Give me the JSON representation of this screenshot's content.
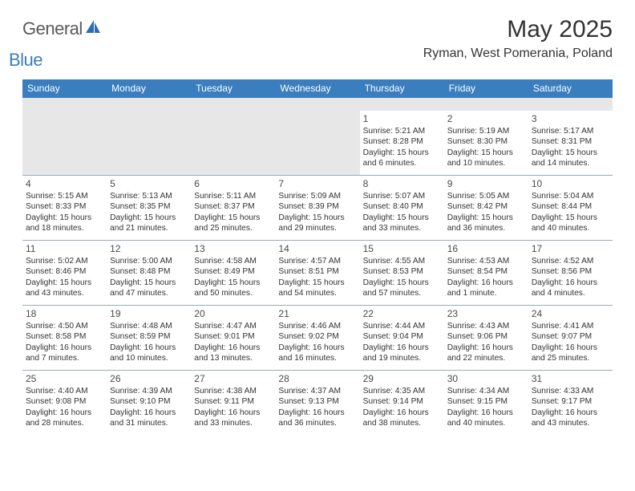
{
  "logo": {
    "text1": "General",
    "text2": "Blue"
  },
  "title": "May 2025",
  "location": "Ryman, West Pomerania, Poland",
  "colors": {
    "header_bg": "#3a7ebf",
    "header_fg": "#ffffff",
    "band_bg": "#e7e7e7",
    "rule": "#9aaac0"
  },
  "dayNames": [
    "Sunday",
    "Monday",
    "Tuesday",
    "Wednesday",
    "Thursday",
    "Friday",
    "Saturday"
  ],
  "weeks": [
    [
      {
        "n": "",
        "sr": "",
        "ss": "",
        "dl1": "",
        "dl2": ""
      },
      {
        "n": "",
        "sr": "",
        "ss": "",
        "dl1": "",
        "dl2": ""
      },
      {
        "n": "",
        "sr": "",
        "ss": "",
        "dl1": "",
        "dl2": ""
      },
      {
        "n": "",
        "sr": "",
        "ss": "",
        "dl1": "",
        "dl2": ""
      },
      {
        "n": "1",
        "sr": "Sunrise: 5:21 AM",
        "ss": "Sunset: 8:28 PM",
        "dl1": "Daylight: 15 hours",
        "dl2": "and 6 minutes."
      },
      {
        "n": "2",
        "sr": "Sunrise: 5:19 AM",
        "ss": "Sunset: 8:30 PM",
        "dl1": "Daylight: 15 hours",
        "dl2": "and 10 minutes."
      },
      {
        "n": "3",
        "sr": "Sunrise: 5:17 AM",
        "ss": "Sunset: 8:31 PM",
        "dl1": "Daylight: 15 hours",
        "dl2": "and 14 minutes."
      }
    ],
    [
      {
        "n": "4",
        "sr": "Sunrise: 5:15 AM",
        "ss": "Sunset: 8:33 PM",
        "dl1": "Daylight: 15 hours",
        "dl2": "and 18 minutes."
      },
      {
        "n": "5",
        "sr": "Sunrise: 5:13 AM",
        "ss": "Sunset: 8:35 PM",
        "dl1": "Daylight: 15 hours",
        "dl2": "and 21 minutes."
      },
      {
        "n": "6",
        "sr": "Sunrise: 5:11 AM",
        "ss": "Sunset: 8:37 PM",
        "dl1": "Daylight: 15 hours",
        "dl2": "and 25 minutes."
      },
      {
        "n": "7",
        "sr": "Sunrise: 5:09 AM",
        "ss": "Sunset: 8:39 PM",
        "dl1": "Daylight: 15 hours",
        "dl2": "and 29 minutes."
      },
      {
        "n": "8",
        "sr": "Sunrise: 5:07 AM",
        "ss": "Sunset: 8:40 PM",
        "dl1": "Daylight: 15 hours",
        "dl2": "and 33 minutes."
      },
      {
        "n": "9",
        "sr": "Sunrise: 5:05 AM",
        "ss": "Sunset: 8:42 PM",
        "dl1": "Daylight: 15 hours",
        "dl2": "and 36 minutes."
      },
      {
        "n": "10",
        "sr": "Sunrise: 5:04 AM",
        "ss": "Sunset: 8:44 PM",
        "dl1": "Daylight: 15 hours",
        "dl2": "and 40 minutes."
      }
    ],
    [
      {
        "n": "11",
        "sr": "Sunrise: 5:02 AM",
        "ss": "Sunset: 8:46 PM",
        "dl1": "Daylight: 15 hours",
        "dl2": "and 43 minutes."
      },
      {
        "n": "12",
        "sr": "Sunrise: 5:00 AM",
        "ss": "Sunset: 8:48 PM",
        "dl1": "Daylight: 15 hours",
        "dl2": "and 47 minutes."
      },
      {
        "n": "13",
        "sr": "Sunrise: 4:58 AM",
        "ss": "Sunset: 8:49 PM",
        "dl1": "Daylight: 15 hours",
        "dl2": "and 50 minutes."
      },
      {
        "n": "14",
        "sr": "Sunrise: 4:57 AM",
        "ss": "Sunset: 8:51 PM",
        "dl1": "Daylight: 15 hours",
        "dl2": "and 54 minutes."
      },
      {
        "n": "15",
        "sr": "Sunrise: 4:55 AM",
        "ss": "Sunset: 8:53 PM",
        "dl1": "Daylight: 15 hours",
        "dl2": "and 57 minutes."
      },
      {
        "n": "16",
        "sr": "Sunrise: 4:53 AM",
        "ss": "Sunset: 8:54 PM",
        "dl1": "Daylight: 16 hours",
        "dl2": "and 1 minute."
      },
      {
        "n": "17",
        "sr": "Sunrise: 4:52 AM",
        "ss": "Sunset: 8:56 PM",
        "dl1": "Daylight: 16 hours",
        "dl2": "and 4 minutes."
      }
    ],
    [
      {
        "n": "18",
        "sr": "Sunrise: 4:50 AM",
        "ss": "Sunset: 8:58 PM",
        "dl1": "Daylight: 16 hours",
        "dl2": "and 7 minutes."
      },
      {
        "n": "19",
        "sr": "Sunrise: 4:48 AM",
        "ss": "Sunset: 8:59 PM",
        "dl1": "Daylight: 16 hours",
        "dl2": "and 10 minutes."
      },
      {
        "n": "20",
        "sr": "Sunrise: 4:47 AM",
        "ss": "Sunset: 9:01 PM",
        "dl1": "Daylight: 16 hours",
        "dl2": "and 13 minutes."
      },
      {
        "n": "21",
        "sr": "Sunrise: 4:46 AM",
        "ss": "Sunset: 9:02 PM",
        "dl1": "Daylight: 16 hours",
        "dl2": "and 16 minutes."
      },
      {
        "n": "22",
        "sr": "Sunrise: 4:44 AM",
        "ss": "Sunset: 9:04 PM",
        "dl1": "Daylight: 16 hours",
        "dl2": "and 19 minutes."
      },
      {
        "n": "23",
        "sr": "Sunrise: 4:43 AM",
        "ss": "Sunset: 9:06 PM",
        "dl1": "Daylight: 16 hours",
        "dl2": "and 22 minutes."
      },
      {
        "n": "24",
        "sr": "Sunrise: 4:41 AM",
        "ss": "Sunset: 9:07 PM",
        "dl1": "Daylight: 16 hours",
        "dl2": "and 25 minutes."
      }
    ],
    [
      {
        "n": "25",
        "sr": "Sunrise: 4:40 AM",
        "ss": "Sunset: 9:08 PM",
        "dl1": "Daylight: 16 hours",
        "dl2": "and 28 minutes."
      },
      {
        "n": "26",
        "sr": "Sunrise: 4:39 AM",
        "ss": "Sunset: 9:10 PM",
        "dl1": "Daylight: 16 hours",
        "dl2": "and 31 minutes."
      },
      {
        "n": "27",
        "sr": "Sunrise: 4:38 AM",
        "ss": "Sunset: 9:11 PM",
        "dl1": "Daylight: 16 hours",
        "dl2": "and 33 minutes."
      },
      {
        "n": "28",
        "sr": "Sunrise: 4:37 AM",
        "ss": "Sunset: 9:13 PM",
        "dl1": "Daylight: 16 hours",
        "dl2": "and 36 minutes."
      },
      {
        "n": "29",
        "sr": "Sunrise: 4:35 AM",
        "ss": "Sunset: 9:14 PM",
        "dl1": "Daylight: 16 hours",
        "dl2": "and 38 minutes."
      },
      {
        "n": "30",
        "sr": "Sunrise: 4:34 AM",
        "ss": "Sunset: 9:15 PM",
        "dl1": "Daylight: 16 hours",
        "dl2": "and 40 minutes."
      },
      {
        "n": "31",
        "sr": "Sunrise: 4:33 AM",
        "ss": "Sunset: 9:17 PM",
        "dl1": "Daylight: 16 hours",
        "dl2": "and 43 minutes."
      }
    ]
  ]
}
